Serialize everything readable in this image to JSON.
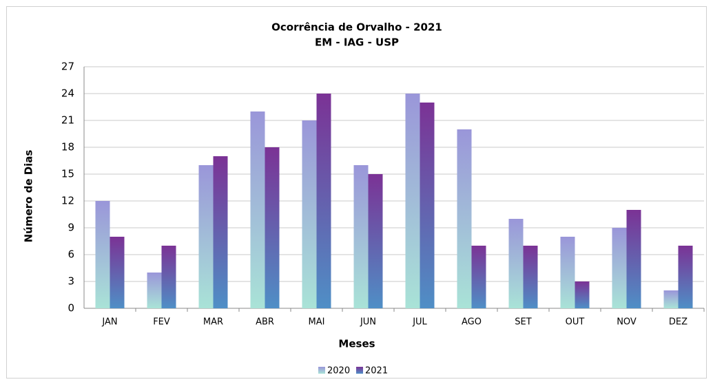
{
  "chart_data": {
    "type": "bar",
    "title": "Ocorrência de Orvalho - 2021",
    "subtitle": "EM - IAG - USP",
    "x_label": "Meses",
    "y_label": "Número de Dias",
    "categories": [
      "JAN",
      "FEV",
      "MAR",
      "ABR",
      "MAI",
      "JUN",
      "JUL",
      "AGO",
      "SET",
      "OUT",
      "NOV",
      "DEZ"
    ],
    "series": [
      {
        "name": "2020",
        "color": "#9a96d9",
        "gradient": [
          "#9a96d9",
          "#a9e3d7"
        ],
        "values": [
          12,
          4,
          16,
          22,
          21,
          16,
          24,
          20,
          10,
          8,
          9,
          2
        ]
      },
      {
        "name": "2021",
        "color": "#7b3295",
        "gradient": [
          "#7b3295",
          "#4f8fc6"
        ],
        "values": [
          8,
          7,
          17,
          18,
          24,
          15,
          23,
          7,
          7,
          3,
          11,
          7
        ]
      }
    ],
    "ylim": [
      0,
      27
    ],
    "yticks": [
      0,
      3,
      6,
      9,
      12,
      15,
      18,
      21,
      24,
      27
    ],
    "grid": true,
    "legend": "bottom"
  }
}
